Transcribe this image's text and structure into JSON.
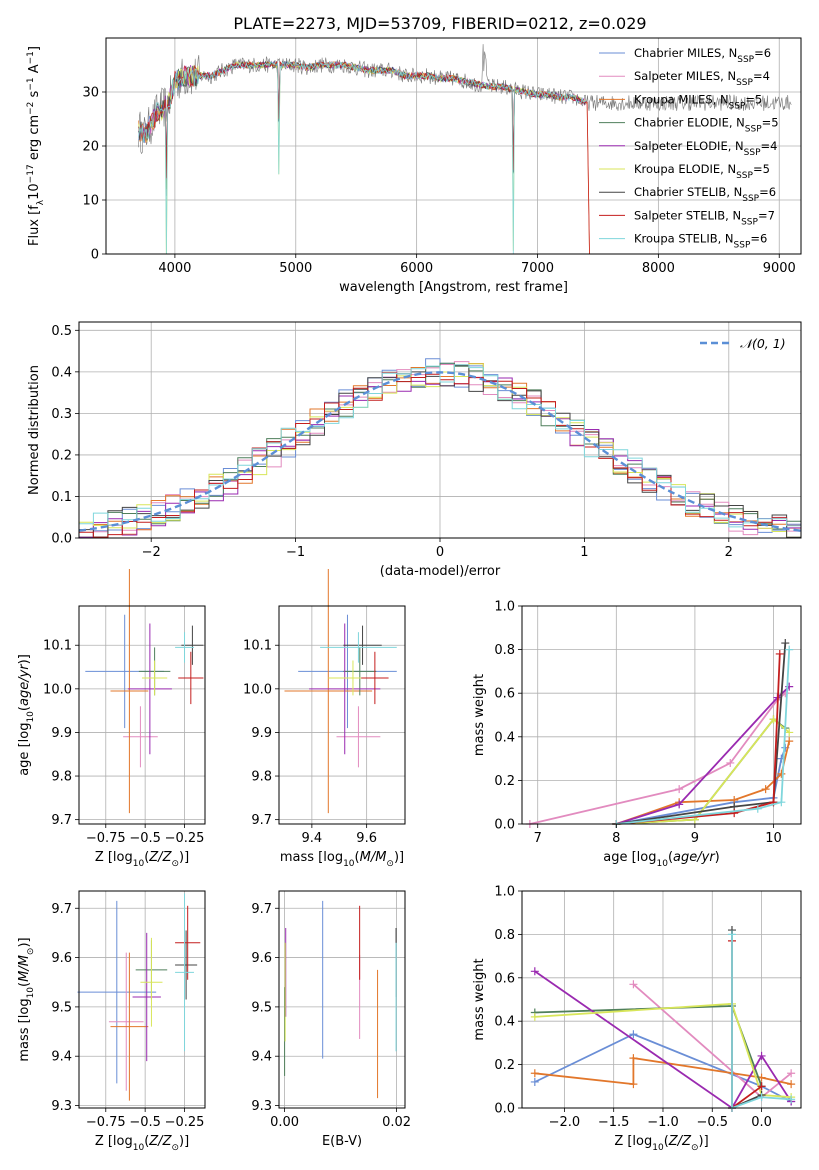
{
  "figure": {
    "title": "PLATE=2273, MJD=53709, FIBERID=0212, z=0.029"
  },
  "models": [
    {
      "name": "Chabrier MILES",
      "nssp": "6",
      "color": "#6a8ed6"
    },
    {
      "name": "Salpeter MILES",
      "nssp": "4",
      "color": "#e28bbf"
    },
    {
      "name": "Kroupa MILES",
      "nssp": "5",
      "color": "#e2772b"
    },
    {
      "name": "Chabrier ELODIE",
      "nssp": "5",
      "color": "#4f7f5b"
    },
    {
      "name": "Salpeter ELODIE",
      "nssp": "4",
      "color": "#9a2ab0"
    },
    {
      "name": "Kroupa ELODIE",
      "nssp": "5",
      "color": "#d8e65a"
    },
    {
      "name": "Chabrier STELIB",
      "nssp": "6",
      "color": "#444444"
    },
    {
      "name": "Salpeter STELIB",
      "nssp": "7",
      "color": "#c41e1e"
    },
    {
      "name": "Kroupa STELIB",
      "nssp": "6",
      "color": "#7fd6dc"
    }
  ],
  "chart_data": [
    {
      "id": "spectrum",
      "type": "line",
      "xlabel": "wavelength [Angstrom, rest frame]",
      "ylabel": "Flux [f",
      "xlim": [
        3430,
        9180
      ],
      "ylim": [
        0,
        40
      ],
      "xticks": [
        4000,
        5000,
        6000,
        7000,
        8000,
        9000
      ],
      "yticks": [
        0,
        10,
        20,
        30
      ],
      "data_envelope": {
        "x": [
          3700,
          3750,
          3800,
          3850,
          3900,
          3950,
          4000,
          4100,
          4200,
          4300,
          4400,
          4500,
          4600,
          4700,
          4800,
          4900,
          5000,
          5100,
          5200,
          5300,
          5400,
          5500,
          5600,
          5700,
          5800,
          5900,
          6000,
          6100,
          6200,
          6300,
          6400,
          6500,
          6600,
          6700,
          6800,
          6900,
          7000,
          7100,
          7200,
          7300,
          7400
        ],
        "y": [
          23,
          22,
          24,
          26,
          27,
          28,
          32,
          33,
          33,
          33,
          34,
          35,
          35,
          35,
          35,
          35,
          35,
          34.5,
          35,
          35,
          35,
          34.5,
          34,
          34,
          34,
          33,
          33,
          33,
          32.5,
          32.5,
          32,
          31.5,
          31,
          31,
          30.5,
          30,
          29.5,
          29.5,
          29,
          29,
          28
        ]
      },
      "absorption_lines": [
        {
          "x": 3933,
          "depth": 30
        },
        {
          "x": 4861,
          "depth": 20
        },
        {
          "x": 6800,
          "depth": 30
        },
        {
          "x": 7425,
          "depth": 28
        }
      ],
      "legend_position": "upper-right"
    },
    {
      "id": "residual-histogram",
      "type": "histogram",
      "xlabel": "(data-model)/error",
      "ylabel": "Normed distribution",
      "xlim": [
        -2.5,
        2.5
      ],
      "ylim": [
        0,
        0.52
      ],
      "xticks": [
        -2,
        -1,
        0,
        1,
        2
      ],
      "yticks": [
        0,
        0.1,
        0.2,
        0.3,
        0.4,
        0.5
      ],
      "bin_width": 0.1,
      "reference_curve": {
        "name": "N(0,1)",
        "style": "dashed"
      },
      "legend_position": "upper-right"
    },
    {
      "id": "age-vs-Z",
      "type": "errorbar",
      "xlabel": "Z [log",
      "ylabel": "age  [log",
      "xlim": [
        -0.92,
        -0.12
      ],
      "ylim": [
        9.69,
        10.19
      ],
      "xticks": [
        -0.75,
        -0.5,
        -0.25
      ],
      "yticks": [
        9.7,
        9.8,
        9.9,
        10.0,
        10.1
      ],
      "points": [
        {
          "x": -0.63,
          "xerr": 0.25,
          "y": 10.04,
          "yerr": 0.13
        },
        {
          "x": -0.53,
          "xerr": 0.11,
          "y": 9.89,
          "yerr": 0.07
        },
        {
          "x": -0.6,
          "xerr": 0.12,
          "y": 9.995,
          "yerr": 0.28
        },
        {
          "x": -0.44,
          "xerr": 0.1,
          "y": 10.04,
          "yerr": 0.055
        },
        {
          "x": -0.47,
          "xerr": 0.14,
          "y": 10.0,
          "yerr": 0.15
        },
        {
          "x": -0.44,
          "xerr": 0.08,
          "y": 10.025,
          "yerr": 0.04
        },
        {
          "x": -0.2,
          "xerr": 0.07,
          "y": 10.1,
          "yerr": 0.045
        },
        {
          "x": -0.21,
          "xerr": 0.08,
          "y": 10.025,
          "yerr": 0.06
        },
        {
          "x": -0.25,
          "xerr": 0.06,
          "y": 10.095,
          "yerr": 0.035
        }
      ]
    },
    {
      "id": "age-vs-mass",
      "type": "errorbar",
      "xlabel": "mass [log",
      "ylabel": "",
      "xlim": [
        9.28,
        9.74
      ],
      "ylim": [
        9.69,
        10.19
      ],
      "xticks": [
        9.4,
        9.6
      ],
      "yticks": [
        9.7,
        9.8,
        9.9,
        10.0,
        10.1
      ],
      "points": [
        {
          "x": 9.53,
          "xerr": 0.18,
          "y": 10.04,
          "yerr": 0.13
        },
        {
          "x": 9.57,
          "xerr": 0.08,
          "y": 9.89,
          "yerr": 0.07
        },
        {
          "x": 9.46,
          "xerr": 0.16,
          "y": 9.995,
          "yerr": 0.28
        },
        {
          "x": 9.575,
          "xerr": 0.06,
          "y": 10.04,
          "yerr": 0.055
        },
        {
          "x": 9.52,
          "xerr": 0.13,
          "y": 10.0,
          "yerr": 0.15
        },
        {
          "x": 9.55,
          "xerr": 0.09,
          "y": 10.025,
          "yerr": 0.04
        },
        {
          "x": 9.585,
          "xerr": 0.07,
          "y": 10.1,
          "yerr": 0.045
        },
        {
          "x": 9.63,
          "xerr": 0.05,
          "y": 10.025,
          "yerr": 0.06
        },
        {
          "x": 9.57,
          "xerr": 0.14,
          "y": 10.095,
          "yerr": 0.035
        }
      ]
    },
    {
      "id": "massweight-vs-age",
      "type": "line",
      "xlabel": "age  [log",
      "ylabel": "mass weight",
      "xlim": [
        6.8,
        10.35
      ],
      "ylim": [
        0,
        1.0
      ],
      "xticks": [
        7,
        8,
        9,
        10
      ],
      "yticks": [
        0,
        0.2,
        0.4,
        0.6,
        0.8,
        1.0
      ],
      "series": [
        {
          "x": [
            8.0,
            9.5,
            10.0,
            10.1,
            10.15
          ],
          "y": [
            0.0,
            0.1,
            0.12,
            0.3,
            0.35
          ]
        },
        {
          "x": [
            6.9,
            8.8,
            9.45,
            10.05,
            10.15
          ],
          "y": [
            0.0,
            0.16,
            0.28,
            0.57,
            0.6
          ]
        },
        {
          "x": [
            8.0,
            8.8,
            9.5,
            9.9,
            10.1,
            10.2
          ],
          "y": [
            0.0,
            0.1,
            0.11,
            0.16,
            0.23,
            0.38
          ]
        },
        {
          "x": [
            8.0,
            9.0,
            10.0,
            10.15
          ],
          "y": [
            0.0,
            0.02,
            0.48,
            0.44
          ]
        },
        {
          "x": [
            8.0,
            8.8,
            10.05,
            10.2
          ],
          "y": [
            0.0,
            0.09,
            0.58,
            0.63
          ]
        },
        {
          "x": [
            8.0,
            9.0,
            10.0,
            10.2
          ],
          "y": [
            0.0,
            0.02,
            0.48,
            0.42
          ]
        },
        {
          "x": [
            8.0,
            9.5,
            10.0,
            10.15
          ],
          "y": [
            0.0,
            0.08,
            0.1,
            0.83
          ]
        },
        {
          "x": [
            8.0,
            9.5,
            10.0,
            10.08
          ],
          "y": [
            0.0,
            0.05,
            0.1,
            0.78
          ]
        },
        {
          "x": [
            8.0,
            9.8,
            10.1,
            10.2
          ],
          "y": [
            0.0,
            0.07,
            0.1,
            0.8
          ]
        }
      ]
    },
    {
      "id": "mass-vs-Z",
      "type": "errorbar",
      "xlabel": "Z [log",
      "ylabel": "mass [log",
      "xlim": [
        -0.92,
        -0.12
      ],
      "ylim": [
        9.295,
        9.735
      ],
      "xticks": [
        -0.75,
        -0.5,
        -0.25
      ],
      "yticks": [
        9.3,
        9.4,
        9.5,
        9.6,
        9.7
      ],
      "points": [
        {
          "x": -0.68,
          "xerr": 0.25,
          "y": 9.53,
          "yerr": 0.185
        },
        {
          "x": -0.62,
          "xerr": 0.11,
          "y": 9.47,
          "yerr": 0.14
        },
        {
          "x": -0.6,
          "xerr": 0.12,
          "y": 9.46,
          "yerr": 0.15
        },
        {
          "x": -0.46,
          "xerr": 0.1,
          "y": 9.575,
          "yerr": 0.06
        },
        {
          "x": -0.49,
          "xerr": 0.09,
          "y": 9.52,
          "yerr": 0.13
        },
        {
          "x": -0.46,
          "xerr": 0.07,
          "y": 9.55,
          "yerr": 0.09
        },
        {
          "x": -0.24,
          "xerr": 0.07,
          "y": 9.585,
          "yerr": 0.07
        },
        {
          "x": -0.23,
          "xerr": 0.08,
          "y": 9.63,
          "yerr": 0.075
        },
        {
          "x": -0.25,
          "xerr": 0.06,
          "y": 9.57,
          "yerr": 0.16
        }
      ]
    },
    {
      "id": "mass-vs-ebv",
      "type": "errorbar",
      "xlabel": "E(B-V)",
      "ylabel": "",
      "xlim": [
        -0.001,
        0.0215
      ],
      "ylim": [
        9.295,
        9.735
      ],
      "xticks": [
        0.0,
        0.02
      ],
      "xtick_labels": [
        "0.00",
        "0.02"
      ],
      "yticks": [
        9.3,
        9.4,
        9.5,
        9.6,
        9.7
      ],
      "points": [
        {
          "x": 0.0068,
          "y": 9.555,
          "yerr": 0.16
        },
        {
          "x": 0.0134,
          "y": 9.52,
          "yerr": 0.085
        },
        {
          "x": 0.0166,
          "y": 9.445,
          "yerr": 0.13
        },
        {
          "x": 0.0,
          "y": 9.45,
          "yerr": 0.09
        },
        {
          "x": 0.0002,
          "y": 9.57,
          "yerr": 0.09
        },
        {
          "x": 0.0001,
          "y": 9.53,
          "yerr": 0.1
        },
        {
          "x": 0.0199,
          "y": 9.59,
          "yerr": 0.07
        },
        {
          "x": 0.0134,
          "y": 9.63,
          "yerr": 0.075
        },
        {
          "x": 0.0199,
          "y": 9.52,
          "yerr": 0.11
        }
      ]
    },
    {
      "id": "massweight-vs-Z",
      "type": "line",
      "xlabel": "Z [log",
      "ylabel": "mass weight",
      "xlim": [
        -2.43,
        0.4
      ],
      "ylim": [
        0,
        1.0
      ],
      "xticks": [
        -2.0,
        -1.5,
        -1.0,
        -0.5,
        0.0
      ],
      "xtick_labels": [
        "−2.0",
        "−1.5",
        "−1.0",
        "−0.5",
        "0.0"
      ],
      "yticks": [
        0,
        0.2,
        0.4,
        0.6,
        0.8,
        1.0
      ],
      "series": [
        {
          "x": [
            -2.3,
            -1.3,
            0.0,
            0.3
          ],
          "y": [
            0.12,
            0.34,
            0.1,
            0.03
          ]
        },
        {
          "x": [
            -1.3,
            0.0,
            0.3
          ],
          "y": [
            0.57,
            0.05,
            0.16
          ]
        },
        {
          "x": [
            -2.3,
            -1.3,
            -1.3,
            0.0,
            0.3
          ],
          "y": [
            0.16,
            0.11,
            0.23,
            0.14,
            0.11
          ]
        },
        {
          "x": [
            -2.3,
            -0.3,
            0.0
          ],
          "y": [
            0.44,
            0.47,
            0.1
          ]
        },
        {
          "x": [
            -2.3,
            -0.3,
            0.0,
            0.3
          ],
          "y": [
            0.63,
            0.0,
            0.24,
            0.03
          ]
        },
        {
          "x": [
            -2.3,
            -0.3,
            0.0,
            0.3
          ],
          "y": [
            0.42,
            0.48,
            0.06,
            0.05
          ]
        },
        {
          "x": [
            -0.3,
            -0.3,
            0.0
          ],
          "y": [
            0.82,
            0.0,
            0.06
          ]
        },
        {
          "x": [
            -0.3,
            -0.3,
            0.0
          ],
          "y": [
            0.77,
            0.0,
            0.1
          ]
        },
        {
          "x": [
            -0.3,
            -0.3,
            0.0,
            0.3
          ],
          "y": [
            0.8,
            0.0,
            0.05,
            0.04
          ]
        }
      ]
    }
  ]
}
